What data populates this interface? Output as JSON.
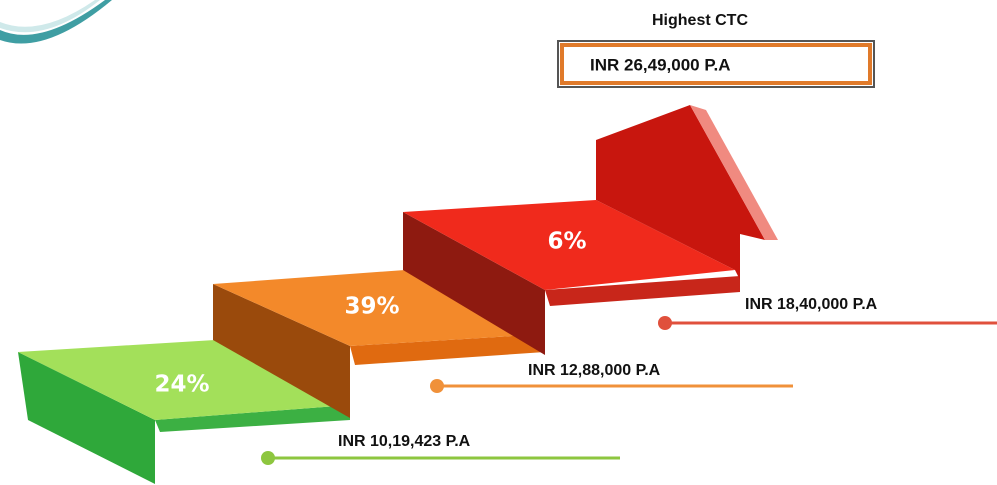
{
  "highest": {
    "title": "Highest CTC",
    "value": "INR 26,49,000 P.A"
  },
  "steps": [
    {
      "percent": "24%",
      "salary": "INR 10,19,423 P.A"
    },
    {
      "percent": "39%",
      "salary": "INR 12,88,000 P.A"
    },
    {
      "percent": "6%",
      "salary": "INR 18,40,000 P.A"
    }
  ]
}
